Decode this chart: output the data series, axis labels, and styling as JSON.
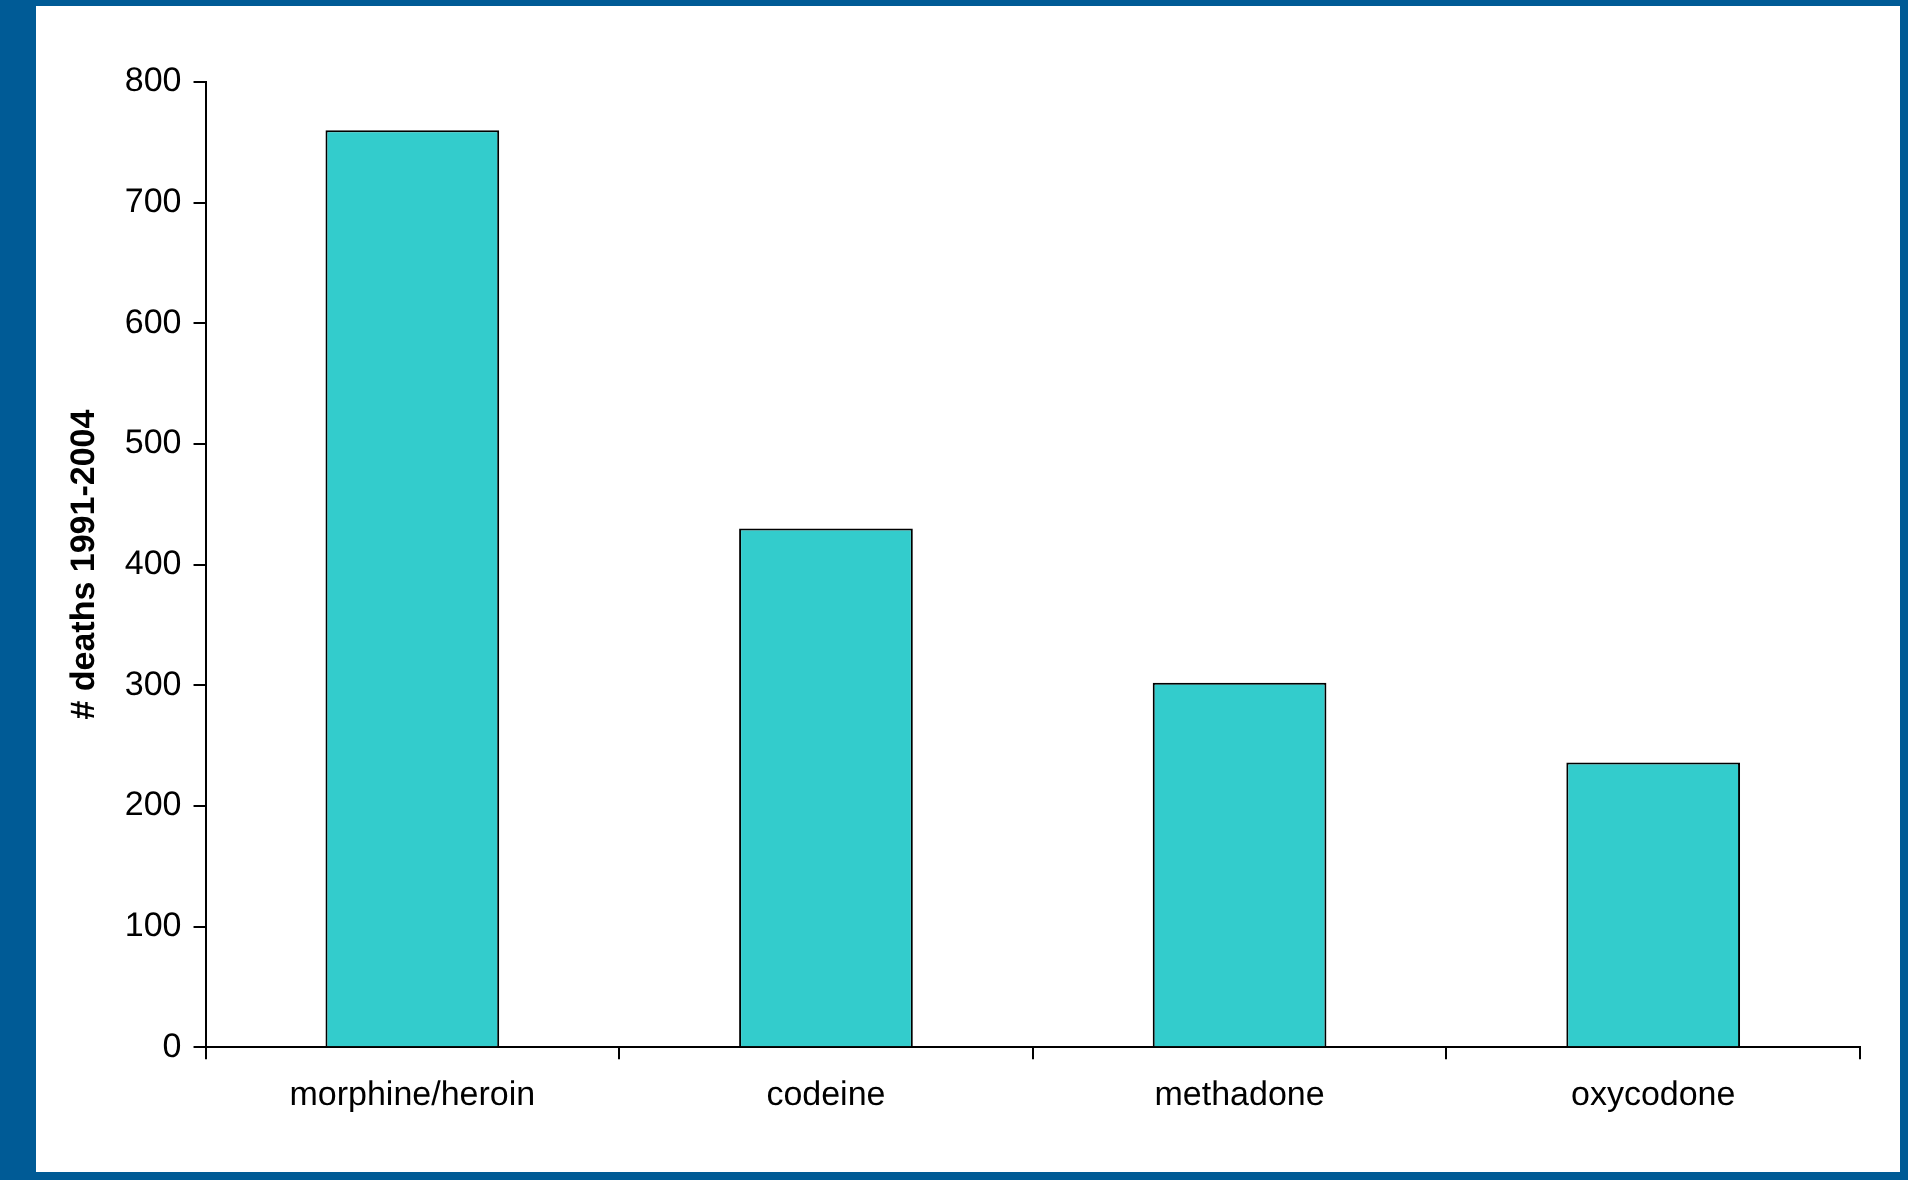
{
  "chart_data": {
    "type": "bar",
    "ylabel": "# deaths 1991-2004",
    "categories": [
      "morphine/heroin",
      "codeine",
      "methadone",
      "oxycodone"
    ],
    "values": [
      760,
      430,
      302,
      236
    ],
    "color": "#33cccc",
    "ylim": [
      0,
      800
    ],
    "yticks": [
      0,
      100,
      200,
      300,
      400,
      500,
      600,
      700,
      800
    ],
    "grid": false,
    "legend": false
  }
}
